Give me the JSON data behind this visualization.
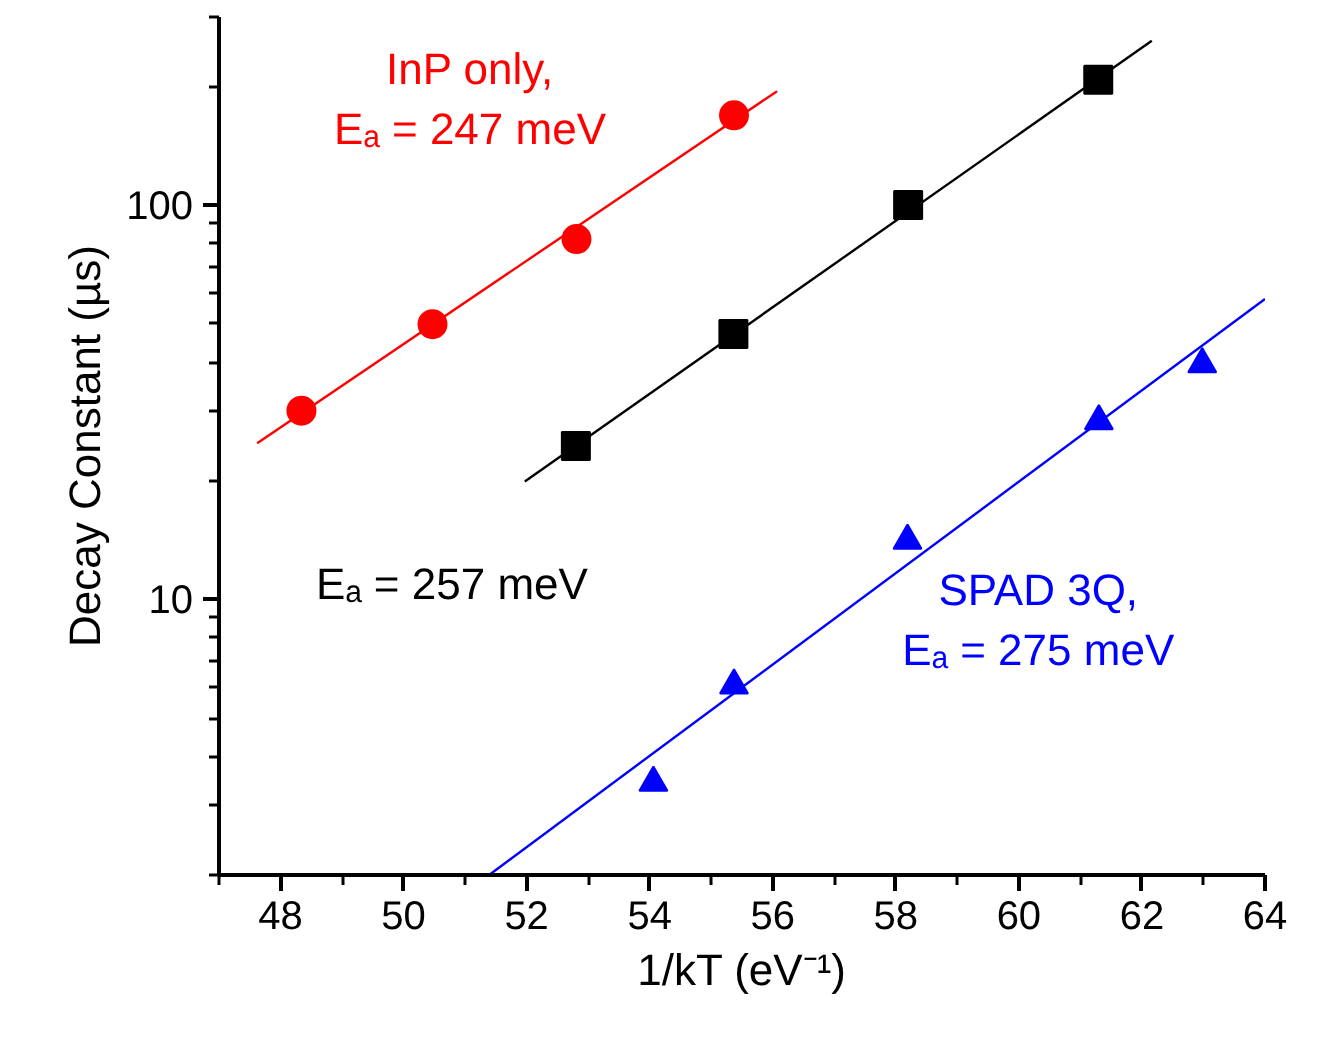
{
  "chart_data": {
    "type": "scatter",
    "xlabel": "1/kT (eV⁻¹)",
    "ylabel": "Decay Constant (µs)",
    "log": "y",
    "grid": false,
    "xlim": [
      47,
      64
    ],
    "ylim": [
      2,
      300
    ],
    "xticks": [
      48,
      50,
      52,
      54,
      56,
      58,
      60,
      62,
      64,
      {
        "value": 47,
        "label": null
      },
      {
        "value": 49,
        "label": null
      },
      {
        "value": 51,
        "label": null
      },
      {
        "value": 53,
        "label": null
      },
      {
        "value": 55,
        "label": null
      },
      {
        "value": 57,
        "label": null
      },
      {
        "value": 59,
        "label": null
      },
      {
        "value": 61,
        "label": null
      },
      {
        "value": 63,
        "label": null
      }
    ],
    "yticks": [
      10,
      100,
      {
        "value": 2,
        "label": null
      },
      {
        "value": 3,
        "label": null
      },
      {
        "value": 4,
        "label": null
      },
      {
        "value": 5,
        "label": null
      },
      {
        "value": 6,
        "label": null
      },
      {
        "value": 7,
        "label": null
      },
      {
        "value": 8,
        "label": null
      },
      {
        "value": 9,
        "label": null
      },
      {
        "value": 20,
        "label": null
      },
      {
        "value": 30,
        "label": null
      },
      {
        "value": 40,
        "label": null
      },
      {
        "value": 50,
        "label": null
      },
      {
        "value": 60,
        "label": null
      },
      {
        "value": 70,
        "label": null
      },
      {
        "value": 80,
        "label": null
      },
      {
        "value": 90,
        "label": null
      },
      {
        "value": 200,
        "label": null
      },
      {
        "value": 300,
        "label": null
      }
    ],
    "series": [
      {
        "name": "InP only, Eₐ = 247 meV",
        "marker": "circle",
        "color": "#ff0000",
        "x": [
          48.34,
          50.47,
          52.81,
          55.37
        ],
        "values": [
          30.1,
          49.9,
          82,
          169
        ]
      },
      {
        "name": "Eₐ = 257 meV",
        "marker": "square",
        "color": "#000000",
        "x": [
          52.8,
          55.36,
          58.2,
          61.29
        ],
        "values": [
          24.5,
          47.1,
          100,
          208
        ]
      },
      {
        "name": "SPAD 3Q, Eₐ = 275 meV",
        "marker": "triangle",
        "color": "#0000ff",
        "x": [
          54.06,
          55.37,
          58.19,
          61.3,
          62.98
        ],
        "values": [
          3.43,
          6.05,
          14.1,
          28.3,
          39.5
        ]
      },
      {
        "type": "line",
        "line_style": "solid",
        "color": "#ff0000",
        "x": [
          47.62,
          56.07
        ],
        "values": [
          24.9,
          194.5
        ]
      },
      {
        "type": "line",
        "line_style": "solid",
        "color": "#000000",
        "x": [
          51.97,
          62.16
        ],
        "values": [
          19.9,
          261
        ]
      },
      {
        "type": "line",
        "line_style": "solid",
        "color": "#0000ff",
        "x": [
          51.39,
          64
        ],
        "values": [
          2,
          57.8
        ]
      }
    ]
  }
}
